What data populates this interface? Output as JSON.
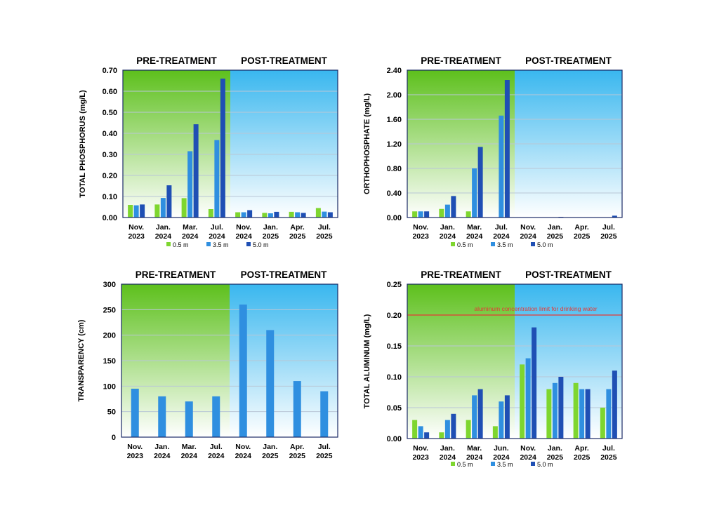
{
  "colors": {
    "s1": "#7ed62f",
    "s2": "#2f8fe0",
    "s3": "#1f4fb4",
    "pre_top": "#5dc01c",
    "post_top": "#39b7ef",
    "limit": "#e53935",
    "grid": "#b9c7d6",
    "frame": "#1a2a66"
  },
  "chart_data": [
    {
      "type": "bar",
      "title_pre": "PRE-TREATMENT",
      "title_post": "POST-TREATMENT",
      "ylabel": "TOTAL PHOSPHORUS  (mg/L)",
      "ylim": [
        0,
        0.7
      ],
      "ytick_labels": [
        "0.00",
        "0.10",
        "0.20",
        "0.30",
        "0.40",
        "0.50",
        "0.60",
        "0.70"
      ],
      "categories": [
        [
          "Nov.",
          "2023"
        ],
        [
          "Jan.",
          "2024"
        ],
        [
          "Mar.",
          "2024"
        ],
        [
          "Jul.",
          "2024"
        ],
        [
          "Nov.",
          "2024"
        ],
        [
          "Jan.",
          "2025"
        ],
        [
          "Apr.",
          "2025"
        ],
        [
          "Jul.",
          "2025"
        ]
      ],
      "pre_count": 4,
      "series": [
        {
          "name": "0.5 m",
          "values": [
            0.06,
            0.062,
            0.092,
            0.04,
            0.025,
            0.022,
            0.027,
            0.045
          ]
        },
        {
          "name": "3.5 m",
          "values": [
            0.058,
            0.093,
            0.315,
            0.368,
            0.025,
            0.02,
            0.025,
            0.028
          ]
        },
        {
          "name": "5.0 m",
          "values": [
            0.062,
            0.153,
            0.443,
            0.66,
            0.035,
            0.027,
            0.022,
            0.025
          ]
        }
      ],
      "legend": [
        "0.5 m",
        "3.5 m",
        "5.0 m"
      ]
    },
    {
      "type": "bar",
      "title_pre": "PRE-TREATMENT",
      "title_post": "POST-TREATMENT",
      "ylabel": "ORTHOPHOSPHATE (mg/L)",
      "ylim": [
        0,
        2.4
      ],
      "ytick_labels": [
        "0.00",
        "0.40",
        "0.80",
        "1.20",
        "1.60",
        "2.00",
        "2.40"
      ],
      "categories": [
        [
          "Nov.",
          "2023"
        ],
        [
          "Jan.",
          "2024"
        ],
        [
          "Mar.",
          "2024"
        ],
        [
          "Jul.",
          "2024"
        ],
        [
          "Nov.",
          "2024"
        ],
        [
          "Jan.",
          "2025"
        ],
        [
          "Apr.",
          "2025"
        ],
        [
          "Jul.",
          "2025"
        ]
      ],
      "pre_count": 4,
      "series": [
        {
          "name": "0.5 m",
          "values": [
            0.1,
            0.14,
            0.1,
            0.0,
            0.0,
            0.0,
            0.0,
            0.0
          ]
        },
        {
          "name": "3.5 m",
          "values": [
            0.1,
            0.21,
            0.8,
            1.66,
            0.0,
            0.0,
            0.0,
            0.0
          ]
        },
        {
          "name": "5.0 m",
          "values": [
            0.1,
            0.35,
            1.15,
            2.24,
            0.0,
            0.01,
            0.0,
            0.03
          ]
        }
      ],
      "legend": [
        "0.5 m",
        "3.5 m",
        "5.0 m"
      ]
    },
    {
      "type": "bar",
      "title_pre": "PRE-TREATMENT",
      "title_post": "POST-TREATMENT",
      "ylabel": "TRANSPARENCY (cm)",
      "ylim": [
        0,
        300
      ],
      "ytick_labels": [
        "0",
        "50",
        "100",
        "150",
        "200",
        "250",
        "300"
      ],
      "categories": [
        [
          "Nov.",
          "2023"
        ],
        [
          "Jan.",
          "2024"
        ],
        [
          "Mar.",
          "2024"
        ],
        [
          "Jul.",
          "2024"
        ],
        [
          "Nov.",
          "2024"
        ],
        [
          "Jan.",
          "2025"
        ],
        [
          "Apr.",
          "2025"
        ],
        [
          "Jul.",
          "2025"
        ]
      ],
      "pre_count": 4,
      "series": [
        {
          "name": "Transparency",
          "values": [
            95,
            80,
            70,
            80,
            260,
            210,
            110,
            90
          ]
        }
      ],
      "legend": []
    },
    {
      "type": "bar",
      "title_pre": "PRE-TREATMENT",
      "title_post": "POST-TREATMENT",
      "ylabel": "TOTAL ALUMINUM (mg/L)",
      "ylim": [
        0,
        0.25
      ],
      "ytick_labels": [
        "0.00",
        "0.05",
        "0.10",
        "0.15",
        "0.20",
        "0.25"
      ],
      "categories": [
        [
          "Nov.",
          "2023"
        ],
        [
          "Jan.",
          "2024"
        ],
        [
          "Mar.",
          "2024"
        ],
        [
          "Jun.",
          "2024"
        ],
        [
          "Nov.",
          "2024"
        ],
        [
          "Jan.",
          "2025"
        ],
        [
          "Apr.",
          "2025"
        ],
        [
          "Jul.",
          "2025"
        ]
      ],
      "pre_count": 4,
      "series": [
        {
          "name": "0.5 m",
          "values": [
            0.03,
            0.01,
            0.03,
            0.02,
            0.12,
            0.08,
            0.09,
            0.05
          ]
        },
        {
          "name": "3.5 m",
          "values": [
            0.02,
            0.03,
            0.07,
            0.06,
            0.13,
            0.09,
            0.08,
            0.08
          ]
        },
        {
          "name": "5.0 m",
          "values": [
            0.01,
            0.04,
            0.08,
            0.07,
            0.18,
            0.1,
            0.08,
            0.11
          ]
        }
      ],
      "limit_line": {
        "value": 0.2,
        "label": "aluminum concentration limit for drinking water"
      },
      "legend": [
        "0.5 m",
        "3.5 m",
        "5.0 m"
      ]
    }
  ]
}
